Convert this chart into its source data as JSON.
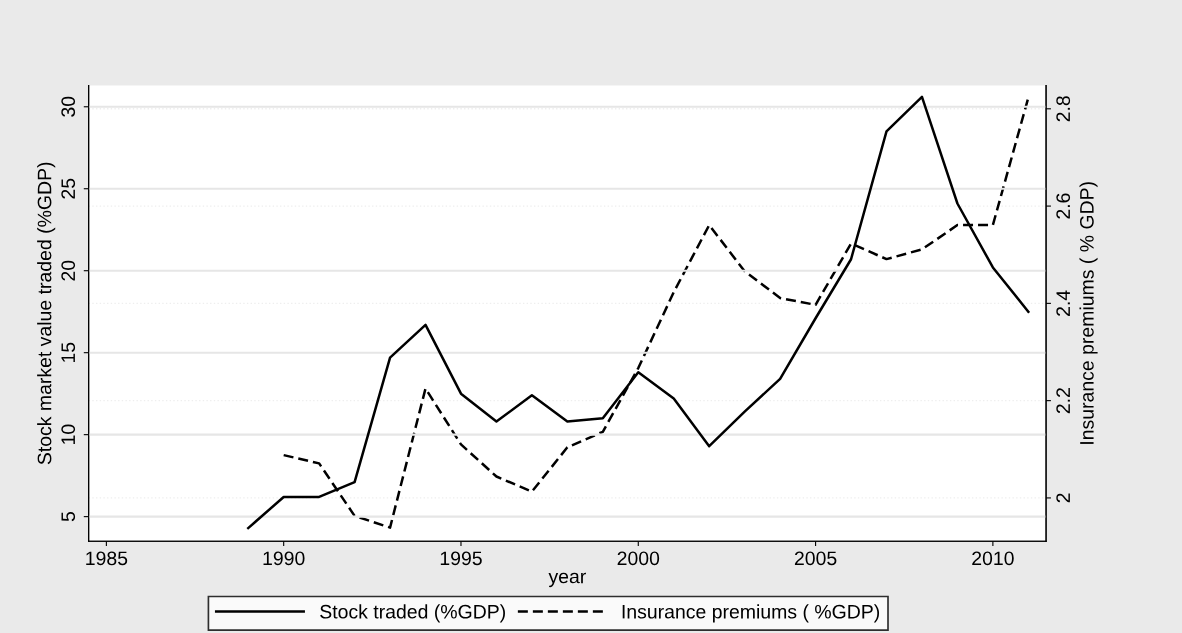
{
  "chart_data": {
    "type": "line",
    "xlabel": "year",
    "ylabel": "Stock market value traded (%GDP)",
    "y2label": "Insurance premiums ( % GDP)",
    "x": [
      1989,
      1990,
      1991,
      1992,
      1993,
      1994,
      1995,
      1996,
      1997,
      1998,
      1999,
      2000,
      2001,
      2002,
      2003,
      2004,
      2005,
      2006,
      2007,
      2008,
      2009,
      2010,
      2011
    ],
    "series": [
      {
        "name": "Stock traded (%GDP)",
        "color": "#000000",
        "line_style": "solid",
        "values": [
          4.3,
          6.2,
          6.2,
          7.1,
          14.7,
          16.7,
          12.5,
          10.8,
          12.4,
          10.8,
          11.0,
          13.8,
          12.2,
          9.3,
          11.4,
          13.4,
          17.1,
          20.7,
          28.5,
          30.6,
          24.1,
          20.2,
          17.5
        ]
      },
      {
        "name": "Insurance premiums ( %GDP)",
        "color": "#000000",
        "line_style": "dashed",
        "axis": "y2",
        "values": [
          null,
          2.088,
          2.071,
          1.963,
          1.939,
          2.225,
          2.11,
          2.044,
          2.013,
          2.104,
          2.136,
          2.267,
          2.423,
          2.561,
          2.466,
          2.411,
          2.397,
          2.523,
          2.491,
          2.511,
          2.561,
          2.561,
          2.823
        ]
      }
    ],
    "xlim": [
      1984.5,
      2011.5
    ],
    "xticks": [
      1985,
      1990,
      1995,
      2000,
      2005,
      2010
    ],
    "ylim": [
      3.5,
      31.3
    ],
    "yticks": [
      5,
      10,
      15,
      20,
      25,
      30
    ],
    "y2lim": [
      1.911,
      2.848
    ],
    "y2ticks": [
      2,
      2.2,
      2.4,
      2.6,
      2.8
    ],
    "grid": "y",
    "legend": "bottom",
    "marker": "none"
  }
}
